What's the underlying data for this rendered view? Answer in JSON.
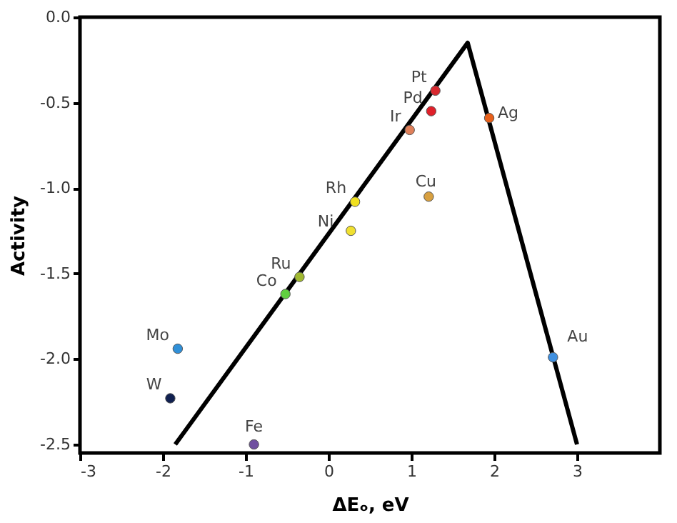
{
  "chart_data": {
    "type": "scatter",
    "xlabel": "ΔEₒ, eV",
    "ylabel": "Activity",
    "xlim": [
      -3,
      4
    ],
    "xticks": [
      -3,
      -2,
      -1,
      0,
      1,
      2,
      3
    ],
    "ylim": [
      -2.55,
      0
    ],
    "yticks": [
      {
        "value": -2.5,
        "label": "-2.5"
      },
      {
        "value": -2,
        "label": "-2.0"
      },
      {
        "value": -1.5,
        "label": "-1.5"
      },
      {
        "value": -1,
        "label": "-1.0"
      },
      {
        "value": -0.5,
        "label": "-0.5"
      },
      {
        "value": 0,
        "label": "0.0"
      }
    ],
    "grid": false,
    "marker": "circle",
    "series": [
      {
        "type": "line",
        "color": "#000000",
        "marker": "none",
        "x": [
          -1.85,
          1.68,
          3.0
        ],
        "values": [
          -2.5,
          -0.15,
          -2.5
        ]
      },
      {
        "name": "Pt",
        "color": "#d8282f",
        "x": [
          1.29
        ],
        "values": [
          -0.43
        ]
      },
      {
        "name": "Pd",
        "color": "#e0202a",
        "x": [
          1.24
        ],
        "values": [
          -0.55
        ]
      },
      {
        "name": "Ir",
        "color": "#e0805a",
        "x": [
          0.98
        ],
        "values": [
          -0.66
        ]
      },
      {
        "name": "Ag",
        "color": "#e8601a",
        "x": [
          1.94
        ],
        "values": [
          -0.59
        ]
      },
      {
        "name": "Rh",
        "color": "#f0e020",
        "x": [
          0.32
        ],
        "values": [
          -1.08
        ]
      },
      {
        "name": "Ni",
        "color": "#f0e030",
        "x": [
          0.27
        ],
        "values": [
          -1.25
        ]
      },
      {
        "name": "Cu",
        "color": "#d8a040",
        "x": [
          1.21
        ],
        "values": [
          -1.05
        ]
      },
      {
        "name": "Ru",
        "color": "#a0b830",
        "x": [
          -0.35
        ],
        "values": [
          -1.52
        ]
      },
      {
        "name": "Co",
        "color": "#60d040",
        "x": [
          -0.52
        ],
        "values": [
          -1.62
        ]
      },
      {
        "name": "Mo",
        "color": "#3090d8",
        "x": [
          -1.82
        ],
        "values": [
          -1.94
        ]
      },
      {
        "name": "W",
        "color": "#102050",
        "x": [
          -1.91
        ],
        "values": [
          -2.23
        ]
      },
      {
        "name": "Fe",
        "color": "#7050a0",
        "x": [
          -0.9
        ],
        "values": [
          -2.5
        ]
      },
      {
        "name": "Au",
        "color": "#4090e0",
        "x": [
          2.71
        ],
        "values": [
          -1.99
        ]
      }
    ]
  }
}
